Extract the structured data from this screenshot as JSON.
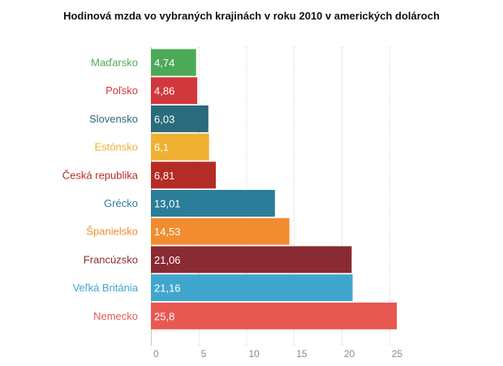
{
  "chart_data": {
    "type": "bar",
    "orientation": "horizontal",
    "title": "Hodinová mzda vo vybraných krajinách v roku 2010 v amerických dolároch",
    "categories": [
      "Maďarsko",
      "Poľsko",
      "Slovensko",
      "Estónsko",
      "Česká republika",
      "Grécko",
      "Španielsko",
      "Francúzsko",
      "Veľká Británia",
      "Nemecko"
    ],
    "values": [
      4.74,
      4.86,
      6.03,
      6.1,
      6.81,
      13.01,
      14.53,
      21.06,
      21.16,
      25.8
    ],
    "value_labels": [
      "4,74",
      "4,86",
      "6,03",
      "6,1",
      "6,81",
      "13,01",
      "14,53",
      "21,06",
      "21,16",
      "25,8"
    ],
    "colors": [
      "#4caa57",
      "#d1383c",
      "#2a6b7c",
      "#f0b032",
      "#b52b25",
      "#2c7d98",
      "#f28c30",
      "#8a2a32",
      "#41a6cd",
      "#e85850"
    ],
    "x_ticks": [
      0,
      5,
      10,
      15,
      20,
      25
    ],
    "x_tick_labels": [
      "0",
      "5",
      "10",
      "15",
      "20",
      "25"
    ],
    "xlim": [
      0,
      26
    ],
    "xlabel": "",
    "ylabel": "",
    "grid": true,
    "legend": "none"
  }
}
